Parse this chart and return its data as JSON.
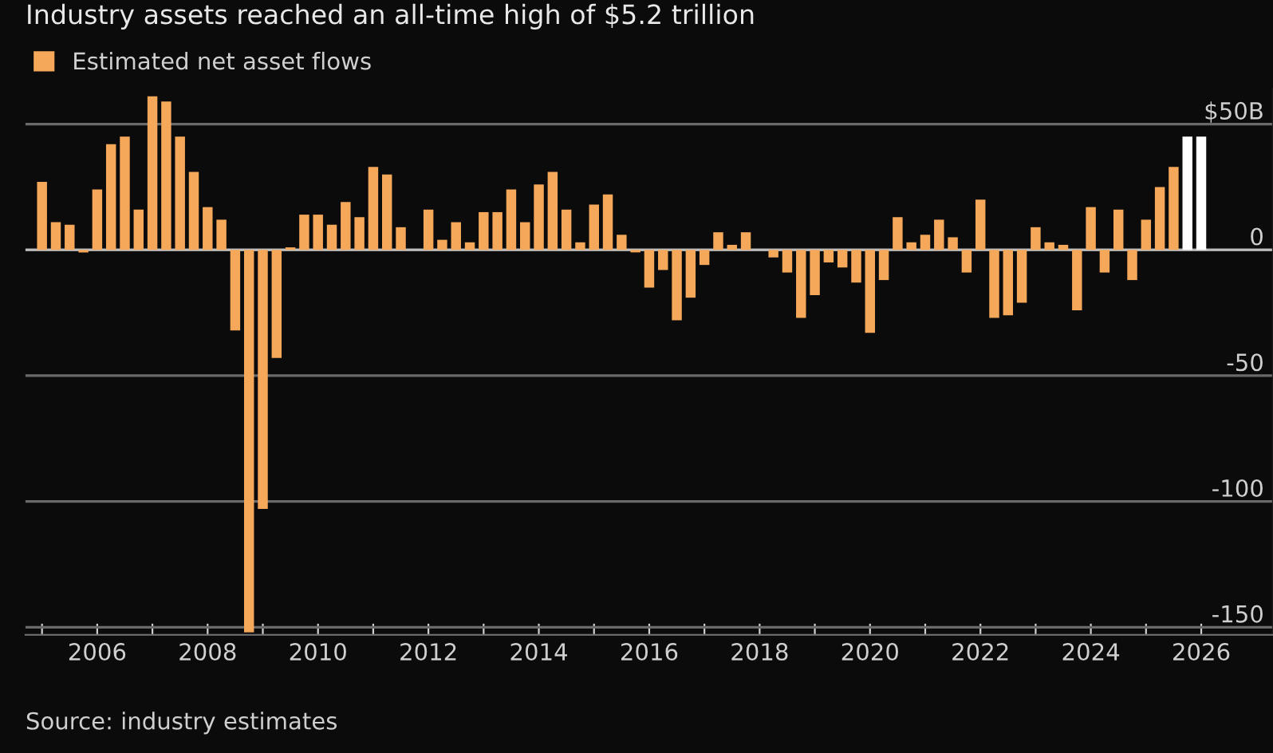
{
  "chart_data": {
    "type": "bar",
    "title": "Industry assets reached an all-time high of $5.2 trillion",
    "annotations": [
      "Source: industry estimates"
    ],
    "x": [
      2005,
      2005.25,
      2005.5,
      2005.75,
      2006,
      2006.25,
      2006.5,
      2006.75,
      2007,
      2007.25,
      2007.5,
      2007.75,
      2008,
      2008.25,
      2008.5,
      2008.75,
      2009,
      2009.25,
      2009.5,
      2009.75,
      2010,
      2010.25,
      2010.5,
      2010.75,
      2011,
      2011.25,
      2011.5,
      2011.75,
      2012,
      2012.25,
      2012.5,
      2012.75,
      2013,
      2013.25,
      2013.5,
      2013.75,
      2014,
      2014.25,
      2014.5,
      2014.75,
      2015,
      2015.25,
      2015.5,
      2015.75,
      2016,
      2016.25,
      2016.5,
      2016.75,
      2017,
      2017.25,
      2017.5,
      2017.75,
      2018,
      2018.25,
      2018.5,
      2018.75,
      2019,
      2019.25,
      2019.5,
      2019.75,
      2020,
      2020.25,
      2020.5,
      2020.75,
      2021,
      2021.25,
      2021.5,
      2021.75,
      2022,
      2022.25,
      2022.5,
      2022.75,
      2023,
      2023.25,
      2023.5,
      2023.75,
      2024,
      2024.25,
      2024.5,
      2024.75,
      2025,
      2025.25,
      2025.5,
      2025.75,
      2026
    ],
    "series": [
      {
        "name": "Estimated net asset flows",
        "color": "#f5a85a",
        "values": [
          27,
          11,
          10,
          -1,
          24,
          42,
          45,
          16,
          61,
          59,
          45,
          31,
          17,
          12,
          -32,
          -152,
          -103,
          -43,
          1,
          14,
          14,
          10,
          19,
          13,
          33,
          30,
          9,
          0,
          16,
          4,
          11,
          3,
          15,
          15,
          24,
          11,
          26,
          31,
          16,
          3,
          18,
          22,
          6,
          -1,
          -15,
          -8,
          -28,
          -19,
          -6,
          7,
          2,
          7,
          0,
          -3,
          -9,
          -27,
          -18,
          -5,
          -7,
          -13,
          -33,
          -12,
          13,
          3,
          6,
          12,
          5,
          -9,
          20,
          -27,
          -26,
          -21,
          9,
          3,
          2,
          -24,
          17,
          -9,
          16,
          -12,
          12,
          25,
          33,
          45,
          45
        ],
        "colors": [
          "#f5a85a",
          "#f5a85a",
          "#f5a85a",
          "#f5a85a",
          "#f5a85a",
          "#f5a85a",
          "#f5a85a",
          "#f5a85a",
          "#f5a85a",
          "#f5a85a",
          "#f5a85a",
          "#f5a85a",
          "#f5a85a",
          "#f5a85a",
          "#f5a85a",
          "#f5a85a",
          "#f5a85a",
          "#f5a85a",
          "#f5a85a",
          "#f5a85a",
          "#f5a85a",
          "#f5a85a",
          "#f5a85a",
          "#f5a85a",
          "#f5a85a",
          "#f5a85a",
          "#f5a85a",
          "#f5a85a",
          "#f5a85a",
          "#f5a85a",
          "#f5a85a",
          "#f5a85a",
          "#f5a85a",
          "#f5a85a",
          "#f5a85a",
          "#f5a85a",
          "#f5a85a",
          "#f5a85a",
          "#f5a85a",
          "#f5a85a",
          "#f5a85a",
          "#f5a85a",
          "#f5a85a",
          "#f5a85a",
          "#f5a85a",
          "#f5a85a",
          "#f5a85a",
          "#f5a85a",
          "#f5a85a",
          "#f5a85a",
          "#f5a85a",
          "#f5a85a",
          "#f5a85a",
          "#f5a85a",
          "#f5a85a",
          "#f5a85a",
          "#f5a85a",
          "#f5a85a",
          "#f5a85a",
          "#f5a85a",
          "#f5a85a",
          "#f5a85a",
          "#f5a85a",
          "#f5a85a",
          "#f5a85a",
          "#f5a85a",
          "#f5a85a",
          "#f5a85a",
          "#f5a85a",
          "#f5a85a",
          "#f5a85a",
          "#f5a85a",
          "#f5a85a",
          "#f5a85a",
          "#f5a85a",
          "#f5a85a",
          "#f5a85a",
          "#f5a85a",
          "#f5a85a",
          "#f5a85a",
          "#f5a85a",
          "#f5a85a",
          "#f5a85a",
          "#ffffff",
          "#ffffff"
        ]
      }
    ],
    "xlim": [
      2004.7,
      2027.3
    ],
    "xticks": [
      {
        "value": 2005,
        "label": null
      },
      2006,
      {
        "value": 2007,
        "label": null
      },
      2008,
      {
        "value": 2009,
        "label": null
      },
      2010,
      {
        "value": 2011,
        "label": null
      },
      2012,
      {
        "value": 2013,
        "label": null
      },
      2014,
      {
        "value": 2015,
        "label": null
      },
      2016,
      {
        "value": 2017,
        "label": null
      },
      2018,
      {
        "value": 2019,
        "label": null
      },
      2020,
      {
        "value": 2021,
        "label": null
      },
      2022,
      {
        "value": 2023,
        "label": null
      },
      2024,
      {
        "value": 2025,
        "label": null
      },
      2026
    ],
    "ylim": [
      -153,
      64
    ],
    "yticks": [
      {
        "value": 50,
        "label": "$50B"
      },
      0,
      -50,
      -100,
      -150
    ],
    "grid": "y",
    "legend": "top left"
  }
}
